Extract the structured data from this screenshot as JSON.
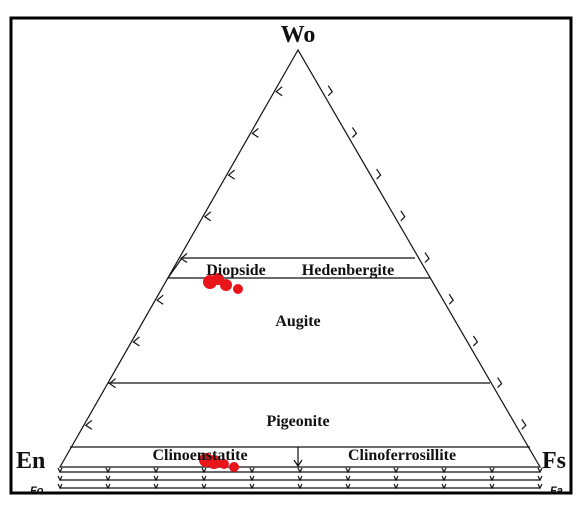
{
  "diagram": {
    "vertices": {
      "top": "Wo",
      "left": "En",
      "right": "Fs"
    },
    "olivine": {
      "left": "Fo",
      "right": "Fa"
    },
    "fields": [
      "Diopside",
      "Hedenbergite",
      "Augite",
      "Pigeonite",
      "Clinoenstatite",
      "Clinoferrosillite"
    ]
  }
}
